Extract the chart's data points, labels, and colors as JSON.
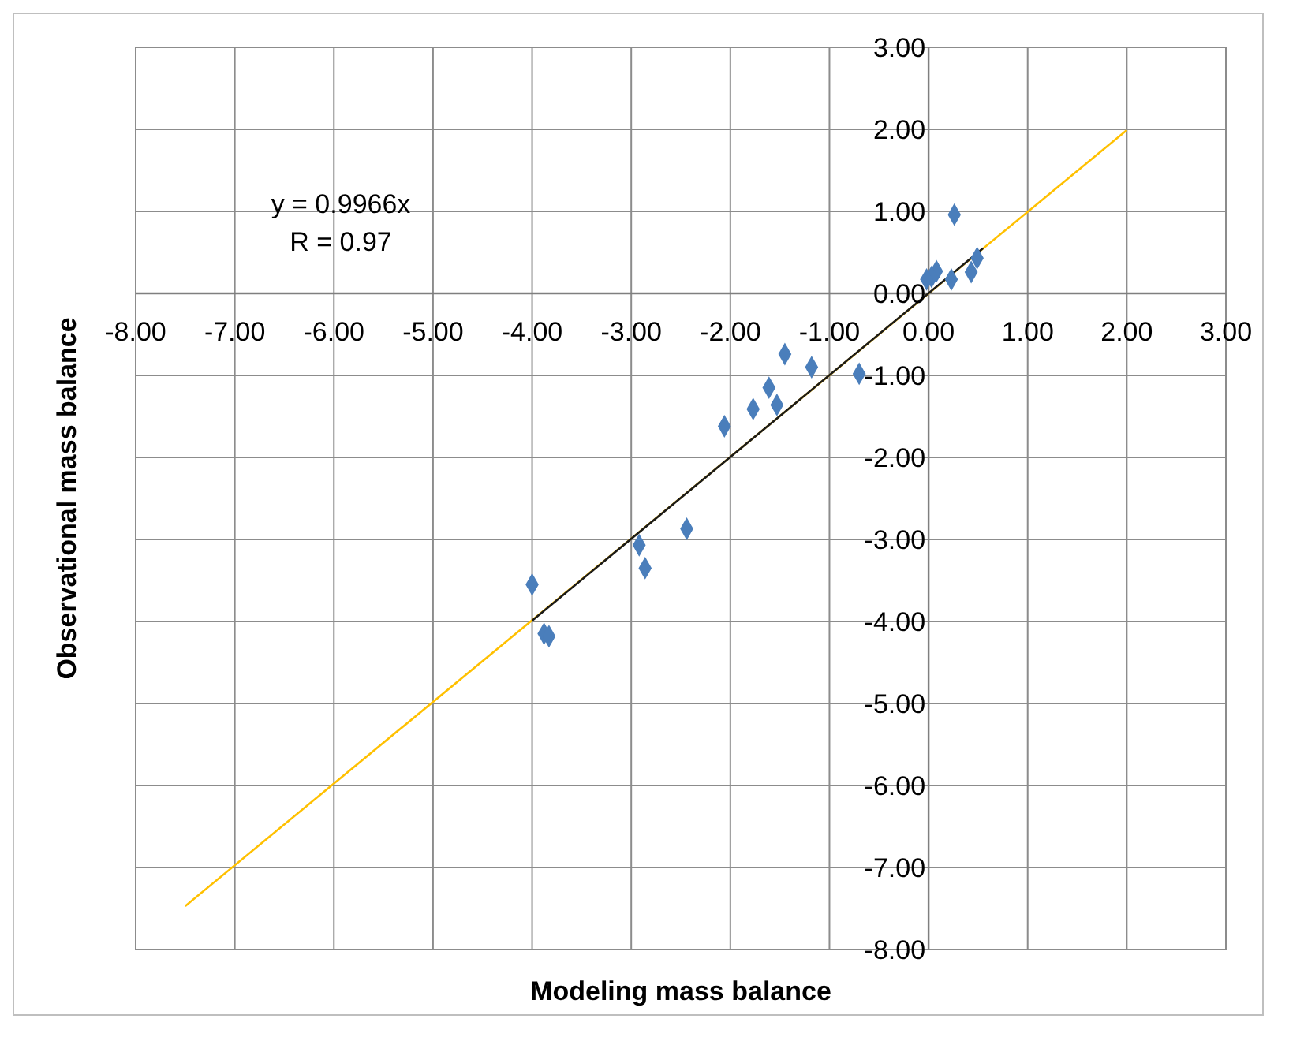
{
  "chart_data": {
    "type": "scatter",
    "xlabel": "Modeling mass balance",
    "ylabel": "Observational mass balance",
    "annotations": [
      "y = 0.9966x",
      "R = 0.97"
    ],
    "xlim": [
      -8,
      3
    ],
    "ylim": [
      -8,
      3
    ],
    "xticks": [
      {
        "value": -8,
        "label": "-8.00"
      },
      {
        "value": -7,
        "label": "-7.00"
      },
      {
        "value": -6,
        "label": "-6.00"
      },
      {
        "value": -5,
        "label": "-5.00"
      },
      {
        "value": -4,
        "label": "-4.00"
      },
      {
        "value": -3,
        "label": "-3.00"
      },
      {
        "value": -2,
        "label": "-2.00"
      },
      {
        "value": -1,
        "label": "-1.00"
      },
      {
        "value": 0,
        "label": "0.00"
      },
      {
        "value": 1,
        "label": "1.00"
      },
      {
        "value": 2,
        "label": "2.00"
      },
      {
        "value": 3,
        "label": "3.00"
      }
    ],
    "yticks": [
      {
        "value": -8,
        "label": "-8.00"
      },
      {
        "value": -7,
        "label": "-7.00"
      },
      {
        "value": -6,
        "label": "-6.00"
      },
      {
        "value": -5,
        "label": "-5.00"
      },
      {
        "value": -4,
        "label": "-4.00"
      },
      {
        "value": -3,
        "label": "-3.00"
      },
      {
        "value": -2,
        "label": "-2.00"
      },
      {
        "value": -1,
        "label": "-1.00"
      },
      {
        "value": 0,
        "label": "0.00"
      },
      {
        "value": 1,
        "label": "1.00"
      },
      {
        "value": 2,
        "label": "2.00"
      },
      {
        "value": 3,
        "label": "3.00"
      }
    ],
    "grid": true,
    "marker": "diamond",
    "series": [
      {
        "type": "line",
        "marker": "none",
        "color": "#ffc000",
        "x": [
          -7.5,
          2
        ],
        "values": [
          -7.47,
          1.99
        ]
      },
      {
        "type": "line",
        "marker": "none",
        "color": "#1a1a1a",
        "x": [
          -4,
          0.55
        ],
        "values": [
          -3.99,
          0.55
        ]
      },
      {
        "color": "#4a7ebb",
        "x": [
          0.26,
          0.49,
          0.43,
          0.23,
          0.08,
          0.03,
          -0.02,
          -0.7,
          -1.18,
          -1.45,
          -1.61,
          -1.53,
          -1.77,
          -2.06,
          -2.44,
          -2.92,
          -2.86,
          -4.0,
          -3.88,
          -3.83
        ],
        "values": [
          0.96,
          0.43,
          0.26,
          0.17,
          0.27,
          0.2,
          0.17,
          -0.98,
          -0.9,
          -0.74,
          -1.15,
          -1.36,
          -1.41,
          -1.62,
          -2.87,
          -3.07,
          -3.35,
          -3.55,
          -4.15,
          -4.18
        ]
      }
    ]
  }
}
